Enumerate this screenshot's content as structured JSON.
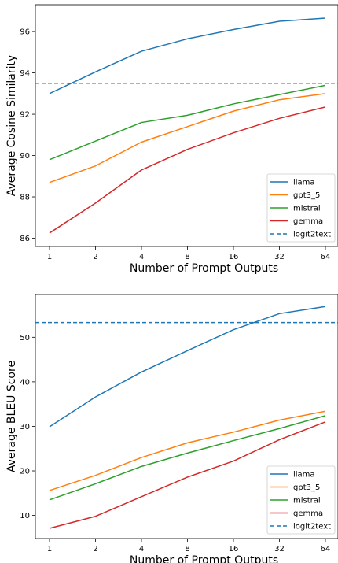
{
  "chart_data": [
    {
      "type": "line",
      "xlabel": "Number of Prompt Outputs",
      "ylabel": "Average Cosine Similarity",
      "categories": [
        "1",
        "2",
        "4",
        "8",
        "16",
        "32",
        "64"
      ],
      "yticks": [
        86,
        88,
        90,
        92,
        94,
        96
      ],
      "ylim": [
        85.6,
        97.3
      ],
      "grid": false,
      "legend_position": "lower-right",
      "series": [
        {
          "name": "llama",
          "color": "#1f77b4",
          "values": [
            93.0,
            94.05,
            95.05,
            95.65,
            96.1,
            96.5,
            96.65
          ]
        },
        {
          "name": "gpt3_5",
          "color": "#ff7f0e",
          "values": [
            88.7,
            89.5,
            90.65,
            91.4,
            92.15,
            92.7,
            93.0
          ]
        },
        {
          "name": "mistral",
          "color": "#2ca02c",
          "values": [
            89.8,
            90.7,
            91.6,
            91.95,
            92.5,
            92.95,
            93.4
          ]
        },
        {
          "name": "gemma",
          "color": "#d62728",
          "values": [
            86.25,
            87.7,
            89.3,
            90.3,
            91.1,
            91.8,
            92.35
          ]
        }
      ],
      "reference": {
        "name": "logit2text",
        "color": "#1f77b4",
        "style": "dashed",
        "value": 93.5
      }
    },
    {
      "type": "line",
      "xlabel": "Number of Prompt Outputs",
      "ylabel": "Average BLEU Score",
      "categories": [
        "1",
        "2",
        "4",
        "8",
        "16",
        "32",
        "64"
      ],
      "yticks": [
        10,
        20,
        30,
        40,
        50
      ],
      "ylim": [
        4.8,
        59.6
      ],
      "grid": false,
      "legend_position": "lower-right",
      "series": [
        {
          "name": "llama",
          "color": "#1f77b4",
          "values": [
            29.9,
            36.6,
            42.2,
            47.0,
            51.7,
            55.3,
            56.9
          ]
        },
        {
          "name": "gpt3_5",
          "color": "#ff7f0e",
          "values": [
            15.6,
            19.0,
            23.0,
            26.3,
            28.7,
            31.4,
            33.4
          ]
        },
        {
          "name": "mistral",
          "color": "#2ca02c",
          "values": [
            13.5,
            17.1,
            21.0,
            24.0,
            26.8,
            29.5,
            32.4
          ]
        },
        {
          "name": "gemma",
          "color": "#d62728",
          "values": [
            7.1,
            9.8,
            14.2,
            18.6,
            22.2,
            27.0,
            31.0
          ]
        }
      ],
      "reference": {
        "name": "logit2text",
        "color": "#1f77b4",
        "style": "dashed",
        "value": 53.3
      }
    }
  ]
}
